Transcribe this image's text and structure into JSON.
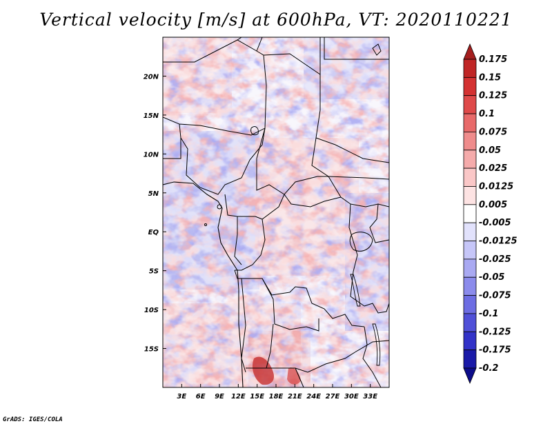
{
  "title": "Vertical velocity [m/s] at 600hPa, VT: 2020110221",
  "footer": "GrADS: IGES/COLA",
  "map": {
    "lon_range": [
      0,
      36
    ],
    "lat_range": [
      -20,
      25
    ],
    "x_ticks": [
      {
        "lon": 3,
        "label": "3E"
      },
      {
        "lon": 6,
        "label": "6E"
      },
      {
        "lon": 9,
        "label": "9E"
      },
      {
        "lon": 12,
        "label": "12E"
      },
      {
        "lon": 15,
        "label": "15E"
      },
      {
        "lon": 18,
        "label": "18E"
      },
      {
        "lon": 21,
        "label": "21E"
      },
      {
        "lon": 24,
        "label": "24E"
      },
      {
        "lon": 27,
        "label": "27E"
      },
      {
        "lon": 30,
        "label": "30E"
      },
      {
        "lon": 33,
        "label": "33E"
      }
    ],
    "y_ticks": [
      {
        "lat": 20,
        "label": "20N"
      },
      {
        "lat": 15,
        "label": "15N"
      },
      {
        "lat": 10,
        "label": "10N"
      },
      {
        "lat": 5,
        "label": "5N"
      },
      {
        "lat": 0,
        "label": "EQ"
      },
      {
        "lat": -5,
        "label": "5S"
      },
      {
        "lat": -10,
        "label": "10S"
      },
      {
        "lat": -15,
        "label": "15S"
      }
    ]
  },
  "colorbar": {
    "labels": [
      "0.175",
      "0.15",
      "0.125",
      "0.1",
      "0.075",
      "0.05",
      "0.025",
      "0.0125",
      "0.005",
      "-0.005",
      "-0.0125",
      "-0.025",
      "-0.05",
      "-0.075",
      "-0.1",
      "-0.125",
      "-0.175",
      "-0.2"
    ],
    "colors": [
      "#a51e1e",
      "#c02626",
      "#d43232",
      "#df4a4a",
      "#e86a6a",
      "#ef8c8c",
      "#f5abab",
      "#fac7c7",
      "#fde3e3",
      "#ffffff",
      "#e2e2fc",
      "#c6c6f8",
      "#a9a9f2",
      "#8b8bec",
      "#6d6de3",
      "#5050d8",
      "#3232c8",
      "#1a1aa8",
      "#0c0c8a"
    ]
  }
}
